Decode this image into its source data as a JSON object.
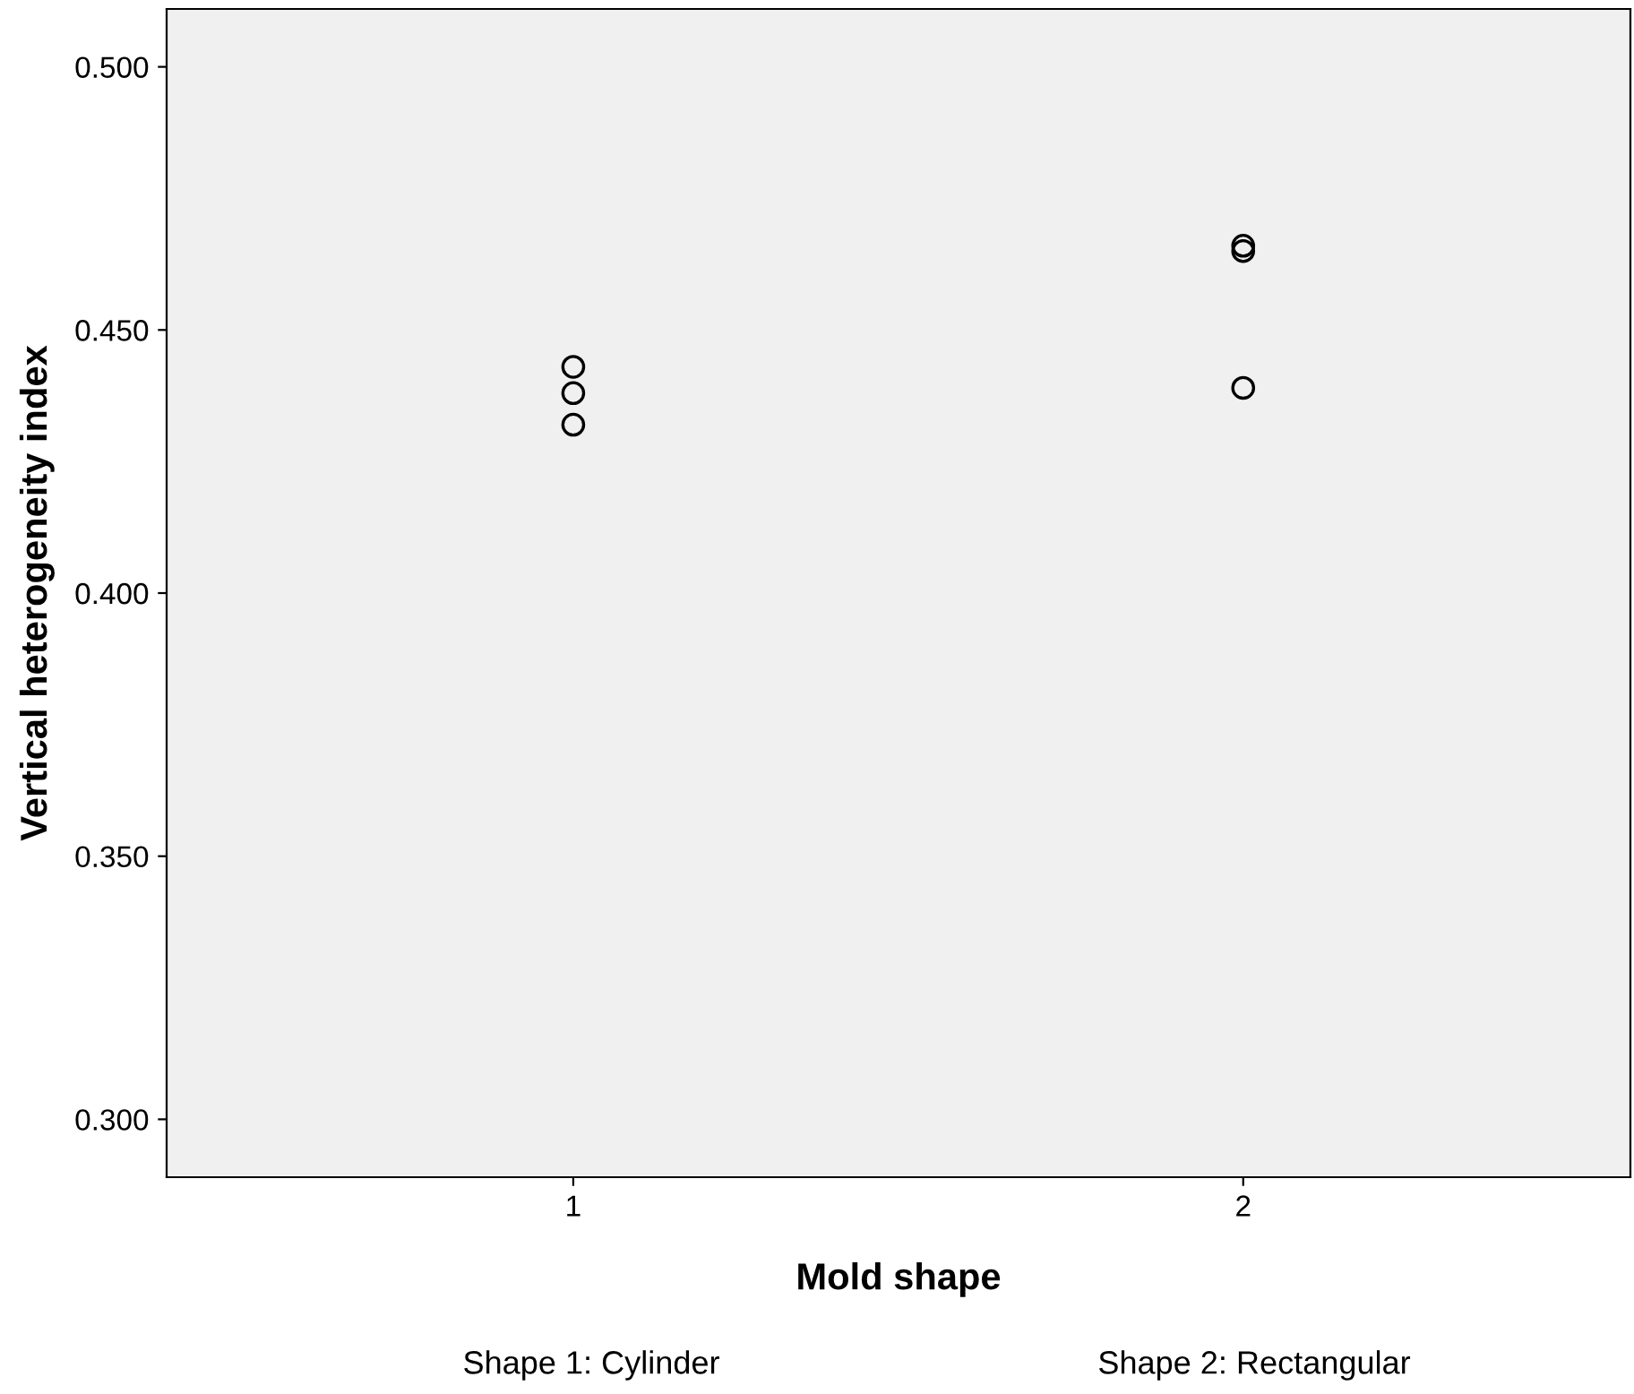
{
  "chart_data": {
    "type": "scatter",
    "xlabel": "Mold shape",
    "ylabel": "Vertical heterogeneity index",
    "categories": [
      "1",
      "2"
    ],
    "series": [
      {
        "color": "#000000",
        "x": [
          "1",
          "1",
          "1",
          "2",
          "2",
          "2"
        ],
        "values": [
          0.443,
          0.438,
          0.432,
          0.466,
          0.465,
          0.439
        ]
      }
    ],
    "ylim": [
      0.289,
      0.511
    ],
    "yticks": [
      {
        "value": 0.3,
        "label": "0.300"
      },
      {
        "value": 0.35,
        "label": "0.350"
      },
      {
        "value": 0.4,
        "label": "0.400"
      },
      {
        "value": 0.45,
        "label": "0.450"
      },
      {
        "value": 0.5,
        "label": "0.500"
      }
    ],
    "marker": "circle",
    "grid": false,
    "legend": false,
    "annotations": [
      "Shape 1: Cylinder",
      "Shape 2: Rectangular"
    ]
  }
}
